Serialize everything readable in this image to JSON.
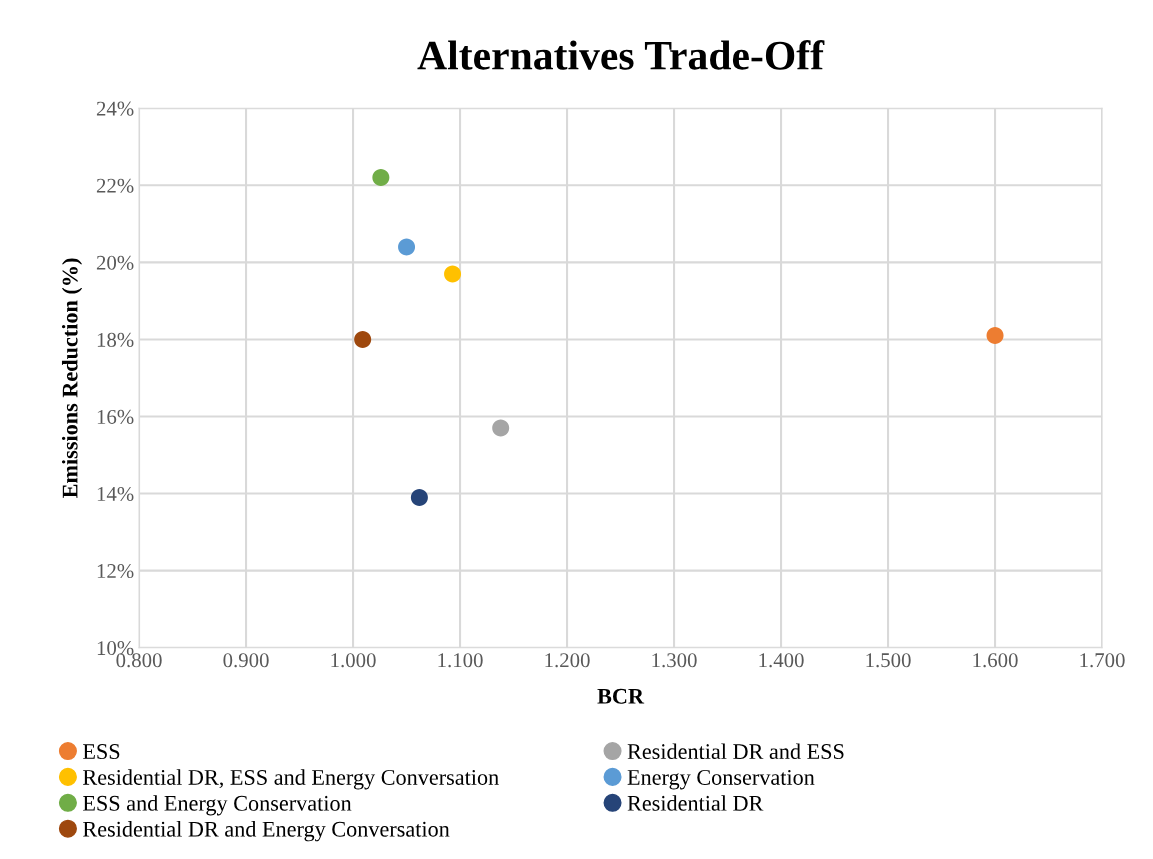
{
  "chart_data": {
    "type": "scatter",
    "title": "Alternatives Trade-Off",
    "xlabel": "BCR",
    "ylabel": "Emissions Reduction (%)",
    "series": [
      {
        "name": "ESS",
        "color": "#ed7d31",
        "x": [
          1.6
        ],
        "values": [
          18.1
        ]
      },
      {
        "name": "Residential DR and ESS",
        "color": "#a5a5a5",
        "x": [
          1.138
        ],
        "values": [
          15.7
        ]
      },
      {
        "name": "Residential DR, ESS and Energy Conversation",
        "color": "#ffc000",
        "x": [
          1.093
        ],
        "values": [
          19.7
        ]
      },
      {
        "name": "Energy Conservation",
        "color": "#5b9bd5",
        "x": [
          1.05
        ],
        "values": [
          20.4
        ]
      },
      {
        "name": "ESS and Energy Conservation",
        "color": "#70ad47",
        "x": [
          1.026
        ],
        "values": [
          22.2
        ]
      },
      {
        "name": "Residential DR",
        "color": "#264478",
        "x": [
          1.062
        ],
        "values": [
          13.9
        ]
      },
      {
        "name": "Residential DR and Energy Conversation",
        "color": "#9e480e",
        "x": [
          1.009
        ],
        "values": [
          18.0
        ]
      }
    ],
    "xlim": [
      0.8,
      1.7
    ],
    "xticks": [
      {
        "value": 0.8,
        "label": "0.800"
      },
      {
        "value": 0.9,
        "label": "0.900"
      },
      {
        "value": 1.0,
        "label": "1.000"
      },
      {
        "value": 1.1,
        "label": "1.100"
      },
      {
        "value": 1.2,
        "label": "1.200"
      },
      {
        "value": 1.3,
        "label": "1.300"
      },
      {
        "value": 1.4,
        "label": "1.400"
      },
      {
        "value": 1.5,
        "label": "1.500"
      },
      {
        "value": 1.6,
        "label": "1.600"
      },
      {
        "value": 1.7,
        "label": "1.700"
      }
    ],
    "ylim": [
      10,
      24
    ],
    "yticks": [
      {
        "value": 10,
        "label": "10%"
      },
      {
        "value": 12,
        "label": "12%"
      },
      {
        "value": 14,
        "label": "14%"
      },
      {
        "value": 16,
        "label": "16%"
      },
      {
        "value": 18,
        "label": "18%"
      },
      {
        "value": 20,
        "label": "20%"
      },
      {
        "value": 22,
        "label": "22%"
      },
      {
        "value": 24,
        "label": "24%"
      }
    ],
    "grid": true,
    "legend": "bottom",
    "marker": "circle"
  }
}
